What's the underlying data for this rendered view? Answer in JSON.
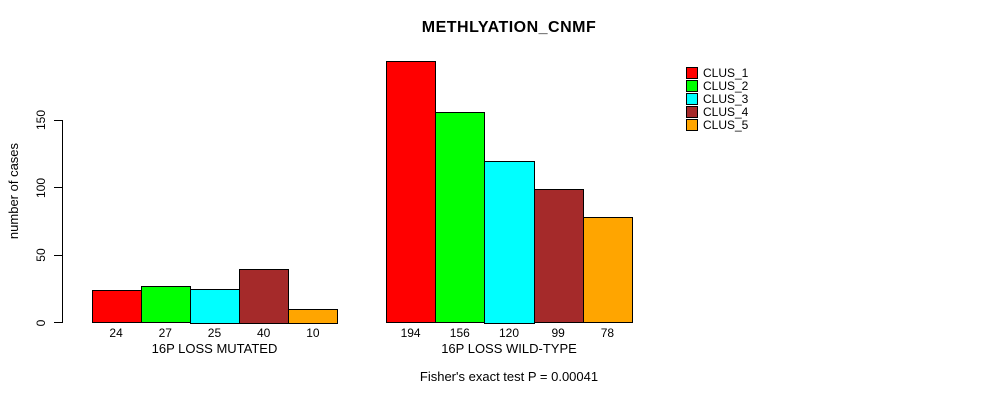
{
  "figure": {
    "title": "METHLYATION_CNMF",
    "ylabel": "number of cases",
    "footer": "Fisher's exact test P = 0.00041"
  },
  "colors": {
    "background": "#FFFFFF",
    "axis": "#000000",
    "bar_border": "#000000",
    "text": "#000000"
  },
  "chart_data": {
    "type": "bar",
    "title": "METHLYATION_CNMF",
    "xlabel": "",
    "ylabel": "number of cases",
    "annotation": "Fisher's exact test P = 0.00041",
    "categories": [
      "16P LOSS MUTATED",
      "16P LOSS WILD-TYPE"
    ],
    "series": [
      {
        "name": "CLUS_1",
        "color": "#FF0000",
        "values": [
          24,
          194
        ]
      },
      {
        "name": "CLUS_2",
        "color": "#00FF00",
        "values": [
          27,
          156
        ]
      },
      {
        "name": "CLUS_3",
        "color": "#00FFFF",
        "values": [
          25,
          120
        ]
      },
      {
        "name": "CLUS_4",
        "color": "#A52A2A",
        "values": [
          40,
          99
        ]
      },
      {
        "name": "CLUS_5",
        "color": "#FFA500",
        "values": [
          10,
          78
        ]
      }
    ],
    "bar_value_labels": [
      [
        "24",
        "27",
        "25",
        "40",
        "10"
      ],
      [
        "194",
        "156",
        "120",
        "99",
        "78"
      ]
    ],
    "yticks": [
      0,
      50,
      100,
      150
    ],
    "ylim": [
      0,
      200
    ],
    "grid": false,
    "legend_position": "top-right",
    "legend_entries": [
      "CLUS_1",
      "CLUS_2",
      "CLUS_3",
      "CLUS_4",
      "CLUS_5"
    ]
  }
}
